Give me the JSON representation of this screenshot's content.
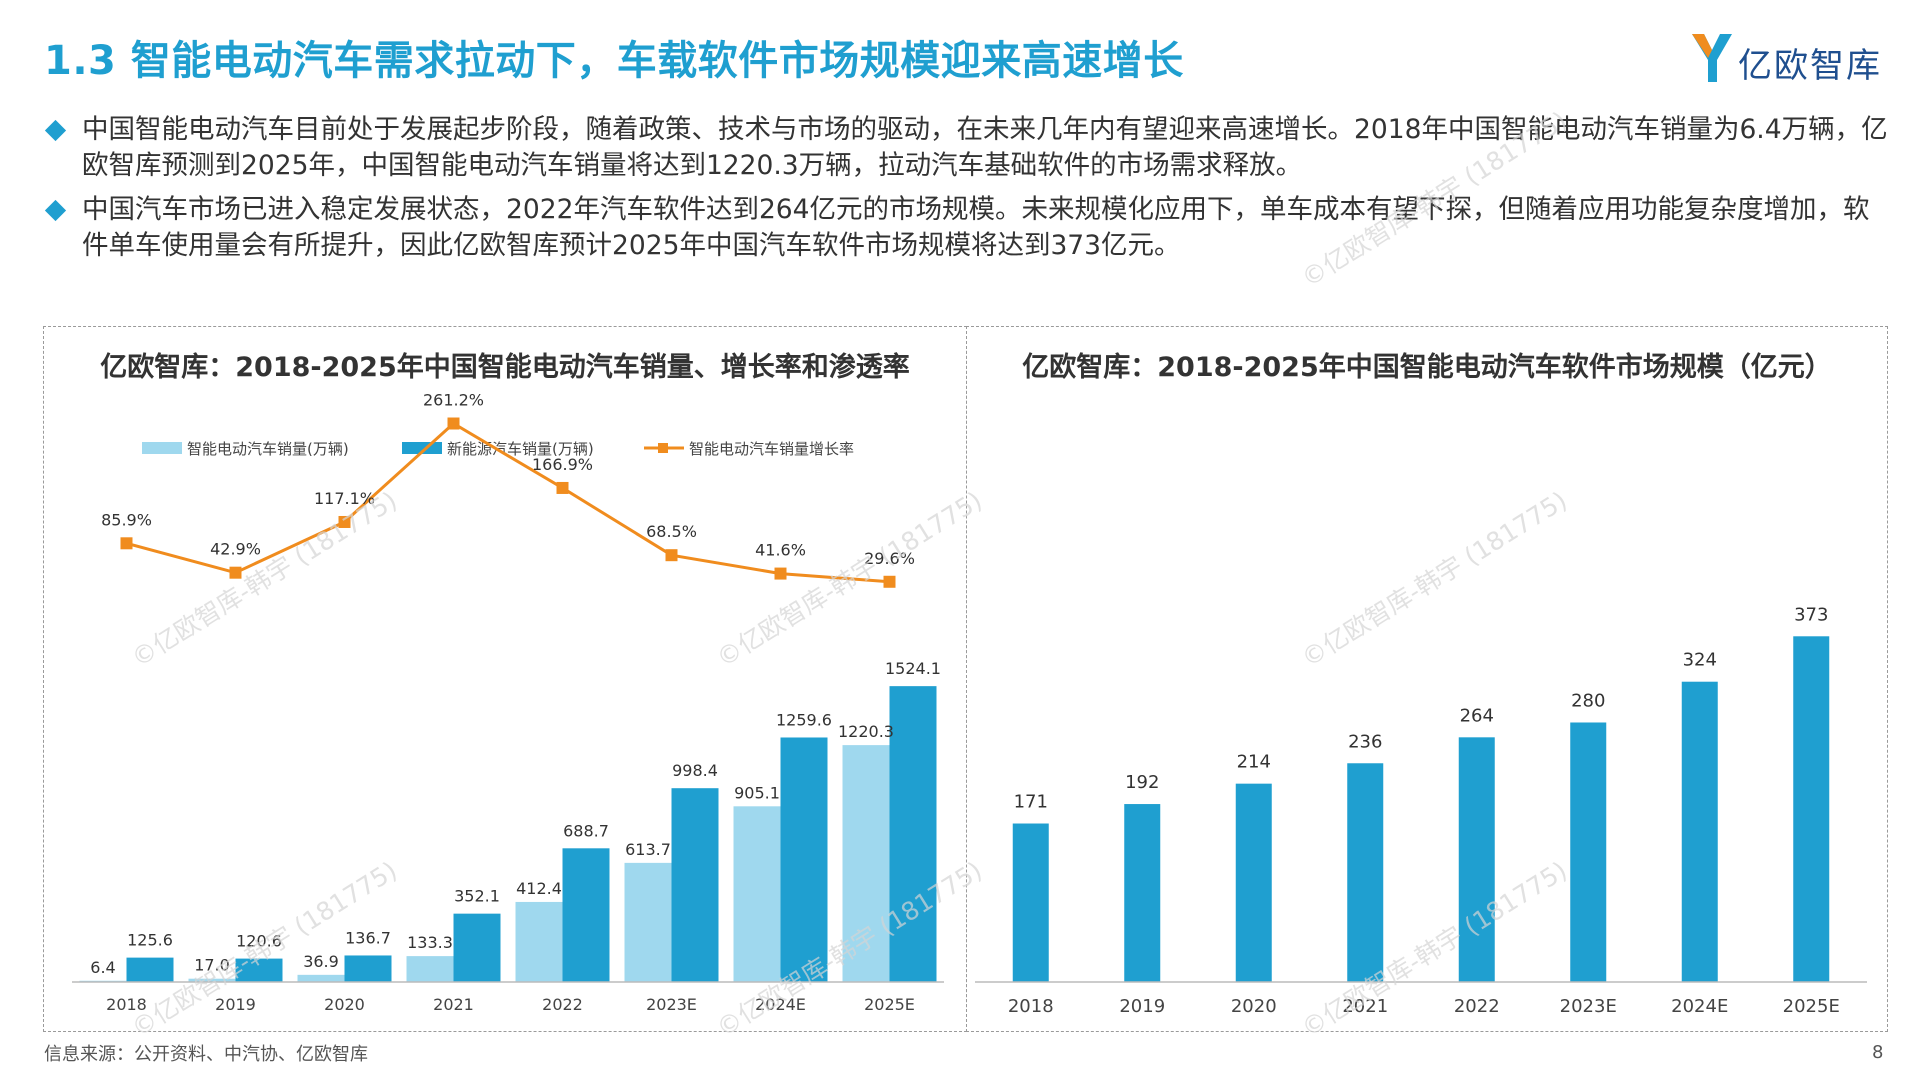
{
  "header": {
    "title": "1.3 智能电动汽车需求拉动下，车载软件市场规模迎来高速增长",
    "logo_text": "亿欧智库"
  },
  "bullets": [
    "中国智能电动汽车目前处于发展起步阶段，随着政策、技术与市场的驱动，在未来几年内有望迎来高速增长。2018年中国智能电动汽车销量为6.4万辆，亿欧智库预测到2025年，中国智能电动汽车销量将达到1220.3万辆，拉动汽车基础软件的市场需求释放。",
    "中国汽车市场已进入稳定发展状态，2022年汽车软件达到264亿元的市场规模。未来规模化应用下，单车成本有望下探，但随着应用功能复杂度增加，软件单车使用量会有所提升，因此亿欧智库预计2025年中国汽车软件市场规模将达到373亿元。"
  ],
  "watermark": "©亿欧智库-韩宇 (181775)",
  "footer": {
    "source": "信息来源：公开资料、中汽协、亿欧智库",
    "page": "8"
  },
  "colors": {
    "accent": "#1f9fd0",
    "light_bar": "#9fd8ee",
    "dark_bar": "#1f9fd0",
    "line": "#f08c1e"
  },
  "chart_data": [
    {
      "type": "bar+line",
      "title": "亿欧智库：2018-2025年中国智能电动汽车销量、增长率和渗透率",
      "categories": [
        "2018",
        "2019",
        "2020",
        "2021",
        "2022",
        "2023E",
        "2024E",
        "2025E"
      ],
      "series": [
        {
          "name": "智能电动汽车销量(万辆)",
          "type": "bar",
          "values": [
            6.4,
            17.0,
            36.9,
            133.3,
            412.4,
            613.7,
            905.1,
            1220.3
          ]
        },
        {
          "name": "新能源汽车销量(万辆)",
          "type": "bar",
          "values": [
            125.6,
            120.6,
            136.7,
            352.1,
            688.7,
            998.4,
            1259.6,
            1524.1
          ]
        },
        {
          "name": "智能电动汽车销量增长率",
          "type": "line",
          "values": [
            85.9,
            42.9,
            117.1,
            261.2,
            166.9,
            68.5,
            41.6,
            29.6
          ],
          "labels": [
            "85.9%",
            "42.9%",
            "117.1%",
            "261.2%",
            "166.9%",
            "68.5%",
            "41.6%",
            "29.6%"
          ]
        }
      ],
      "bar_labels_a": [
        "6.4",
        "17.0",
        "36.9",
        "133.3",
        "412.4",
        "613.7",
        "905.1",
        "1220.3"
      ],
      "bar_labels_b": [
        "125.6",
        "120.6",
        "136.7",
        "352.1",
        "688.7",
        "998.4",
        "1259.6",
        "1524.1"
      ],
      "ylim_bar": [
        0,
        1700
      ],
      "ylim_line": [
        -300,
        300
      ]
    },
    {
      "type": "bar",
      "title": "亿欧智库：2018-2025年中国智能电动汽车软件市场规模（亿元）",
      "categories": [
        "2018",
        "2019",
        "2020",
        "2021",
        "2022",
        "2023E",
        "2024E",
        "2025E"
      ],
      "values": [
        171,
        192,
        214,
        236,
        264,
        280,
        324,
        373
      ],
      "labels": [
        "171",
        "192",
        "214",
        "236",
        "264",
        "280",
        "324",
        "373"
      ],
      "ylim": [
        0,
        410
      ]
    }
  ]
}
